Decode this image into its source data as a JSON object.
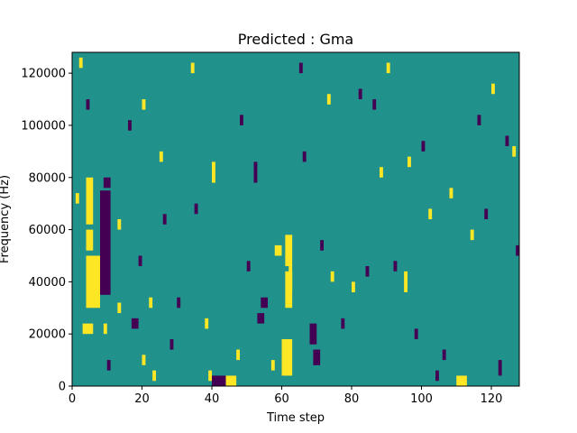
{
  "chart_data": {
    "type": "heatmap",
    "title": "Predicted : Gma",
    "xlabel": "Time step",
    "ylabel": "Frequency (Hz)",
    "xlim": [
      0,
      128
    ],
    "ylim": [
      0,
      128000
    ],
    "xticks": [
      0,
      20,
      40,
      60,
      80,
      100,
      120
    ],
    "yticks": [
      0,
      20000,
      40000,
      60000,
      80000,
      100000,
      120000
    ],
    "colormap": "viridis",
    "values_legend": {
      "low": -1,
      "mid": 0,
      "high": 1
    },
    "colors": {
      "low": "#440154",
      "mid": "#21918c",
      "high": "#fde725"
    },
    "grid": false,
    "legend": "none",
    "cells": [
      {
        "t": 4,
        "f": 30000,
        "w": 4,
        "h": 20000,
        "v": 1
      },
      {
        "t": 3,
        "f": 20000,
        "w": 3,
        "h": 4000,
        "v": 1
      },
      {
        "t": 4,
        "f": 52000,
        "w": 2,
        "h": 8000,
        "v": 1
      },
      {
        "t": 4,
        "f": 62000,
        "w": 2,
        "h": 18000,
        "v": 1
      },
      {
        "t": 8,
        "f": 35000,
        "w": 3,
        "h": 40000,
        "v": -1
      },
      {
        "t": 9,
        "f": 76000,
        "w": 2,
        "h": 4000,
        "v": -1
      },
      {
        "t": 1,
        "f": 70000,
        "w": 1,
        "h": 4000,
        "v": 1
      },
      {
        "t": 2,
        "f": 122000,
        "w": 1,
        "h": 4000,
        "v": 1
      },
      {
        "t": 4,
        "f": 106000,
        "w": 1,
        "h": 4000,
        "v": -1
      },
      {
        "t": 9,
        "f": 20000,
        "w": 1,
        "h": 4000,
        "v": 1
      },
      {
        "t": 10,
        "f": 6000,
        "w": 1,
        "h": 4000,
        "v": -1
      },
      {
        "t": 13,
        "f": 60000,
        "w": 1,
        "h": 4000,
        "v": 1
      },
      {
        "t": 13,
        "f": 28000,
        "w": 1,
        "h": 4000,
        "v": 1
      },
      {
        "t": 16,
        "f": 98000,
        "w": 1,
        "h": 4000,
        "v": -1
      },
      {
        "t": 17,
        "f": 22000,
        "w": 2,
        "h": 4000,
        "v": -1
      },
      {
        "t": 19,
        "f": 46000,
        "w": 1,
        "h": 4000,
        "v": -1
      },
      {
        "t": 20,
        "f": 106000,
        "w": 1,
        "h": 4000,
        "v": 1
      },
      {
        "t": 20,
        "f": 8000,
        "w": 1,
        "h": 4000,
        "v": 1
      },
      {
        "t": 22,
        "f": 30000,
        "w": 1,
        "h": 4000,
        "v": 1
      },
      {
        "t": 23,
        "f": 2000,
        "w": 1,
        "h": 4000,
        "v": 1
      },
      {
        "t": 25,
        "f": 86000,
        "w": 1,
        "h": 4000,
        "v": 1
      },
      {
        "t": 26,
        "f": 62000,
        "w": 1,
        "h": 4000,
        "v": -1
      },
      {
        "t": 28,
        "f": 14000,
        "w": 1,
        "h": 4000,
        "v": -1
      },
      {
        "t": 30,
        "f": 30000,
        "w": 1,
        "h": 4000,
        "v": -1
      },
      {
        "t": 34,
        "f": 120000,
        "w": 1,
        "h": 4000,
        "v": 1
      },
      {
        "t": 35,
        "f": 66000,
        "w": 1,
        "h": 4000,
        "v": -1
      },
      {
        "t": 38,
        "f": 22000,
        "w": 1,
        "h": 4000,
        "v": 1
      },
      {
        "t": 39,
        "f": 2000,
        "w": 1,
        "h": 4000,
        "v": 1
      },
      {
        "t": 40,
        "f": 78000,
        "w": 1,
        "h": 8000,
        "v": 1
      },
      {
        "t": 40,
        "f": 0,
        "w": 4,
        "h": 4000,
        "v": -1
      },
      {
        "t": 44,
        "f": 0,
        "w": 3,
        "h": 4000,
        "v": 1
      },
      {
        "t": 47,
        "f": 10000,
        "w": 1,
        "h": 4000,
        "v": 1
      },
      {
        "t": 48,
        "f": 100000,
        "w": 1,
        "h": 4000,
        "v": -1
      },
      {
        "t": 50,
        "f": 44000,
        "w": 1,
        "h": 4000,
        "v": -1
      },
      {
        "t": 52,
        "f": 78000,
        "w": 1,
        "h": 8000,
        "v": -1
      },
      {
        "t": 53,
        "f": 24000,
        "w": 2,
        "h": 4000,
        "v": -1
      },
      {
        "t": 54,
        "f": 30000,
        "w": 2,
        "h": 4000,
        "v": -1
      },
      {
        "t": 57,
        "f": 6000,
        "w": 1,
        "h": 4000,
        "v": 1
      },
      {
        "t": 58,
        "f": 50000,
        "w": 2,
        "h": 4000,
        "v": 1
      },
      {
        "t": 60,
        "f": 4000,
        "w": 3,
        "h": 14000,
        "v": 1
      },
      {
        "t": 61,
        "f": 30000,
        "w": 2,
        "h": 14000,
        "v": 1
      },
      {
        "t": 61,
        "f": 46000,
        "w": 2,
        "h": 12000,
        "v": 1
      },
      {
        "t": 62,
        "f": 36000,
        "w": 1,
        "h": 10000,
        "v": 1
      },
      {
        "t": 65,
        "f": 120000,
        "w": 1,
        "h": 4000,
        "v": -1
      },
      {
        "t": 66,
        "f": 86000,
        "w": 1,
        "h": 4000,
        "v": -1
      },
      {
        "t": 68,
        "f": 16000,
        "w": 2,
        "h": 8000,
        "v": -1
      },
      {
        "t": 69,
        "f": 8000,
        "w": 2,
        "h": 6000,
        "v": -1
      },
      {
        "t": 71,
        "f": 52000,
        "w": 1,
        "h": 4000,
        "v": -1
      },
      {
        "t": 73,
        "f": 108000,
        "w": 1,
        "h": 4000,
        "v": 1
      },
      {
        "t": 74,
        "f": 40000,
        "w": 1,
        "h": 4000,
        "v": 1
      },
      {
        "t": 77,
        "f": 22000,
        "w": 1,
        "h": 4000,
        "v": -1
      },
      {
        "t": 80,
        "f": 36000,
        "w": 1,
        "h": 4000,
        "v": 1
      },
      {
        "t": 82,
        "f": 110000,
        "w": 1,
        "h": 4000,
        "v": -1
      },
      {
        "t": 84,
        "f": 42000,
        "w": 1,
        "h": 4000,
        "v": -1
      },
      {
        "t": 86,
        "f": 106000,
        "w": 1,
        "h": 4000,
        "v": -1
      },
      {
        "t": 88,
        "f": 80000,
        "w": 1,
        "h": 4000,
        "v": 1
      },
      {
        "t": 90,
        "f": 120000,
        "w": 1,
        "h": 4000,
        "v": 1
      },
      {
        "t": 92,
        "f": 44000,
        "w": 1,
        "h": 4000,
        "v": -1
      },
      {
        "t": 95,
        "f": 36000,
        "w": 1,
        "h": 8000,
        "v": 1
      },
      {
        "t": 96,
        "f": 84000,
        "w": 1,
        "h": 4000,
        "v": 1
      },
      {
        "t": 98,
        "f": 18000,
        "w": 1,
        "h": 4000,
        "v": -1
      },
      {
        "t": 100,
        "f": 90000,
        "w": 1,
        "h": 4000,
        "v": -1
      },
      {
        "t": 102,
        "f": 64000,
        "w": 1,
        "h": 4000,
        "v": 1
      },
      {
        "t": 104,
        "f": 2000,
        "w": 1,
        "h": 4000,
        "v": -1
      },
      {
        "t": 106,
        "f": 10000,
        "w": 1,
        "h": 4000,
        "v": -1
      },
      {
        "t": 108,
        "f": 72000,
        "w": 1,
        "h": 4000,
        "v": 1
      },
      {
        "t": 110,
        "f": 0,
        "w": 3,
        "h": 4000,
        "v": 1
      },
      {
        "t": 114,
        "f": 56000,
        "w": 1,
        "h": 4000,
        "v": 1
      },
      {
        "t": 116,
        "f": 100000,
        "w": 1,
        "h": 4000,
        "v": -1
      },
      {
        "t": 118,
        "f": 64000,
        "w": 1,
        "h": 4000,
        "v": -1
      },
      {
        "t": 120,
        "f": 112000,
        "w": 1,
        "h": 4000,
        "v": 1
      },
      {
        "t": 122,
        "f": 4000,
        "w": 1,
        "h": 6000,
        "v": -1
      },
      {
        "t": 124,
        "f": 92000,
        "w": 1,
        "h": 4000,
        "v": -1
      },
      {
        "t": 126,
        "f": 88000,
        "w": 1,
        "h": 4000,
        "v": 1
      },
      {
        "t": 127,
        "f": 50000,
        "w": 1,
        "h": 4000,
        "v": -1
      }
    ]
  }
}
